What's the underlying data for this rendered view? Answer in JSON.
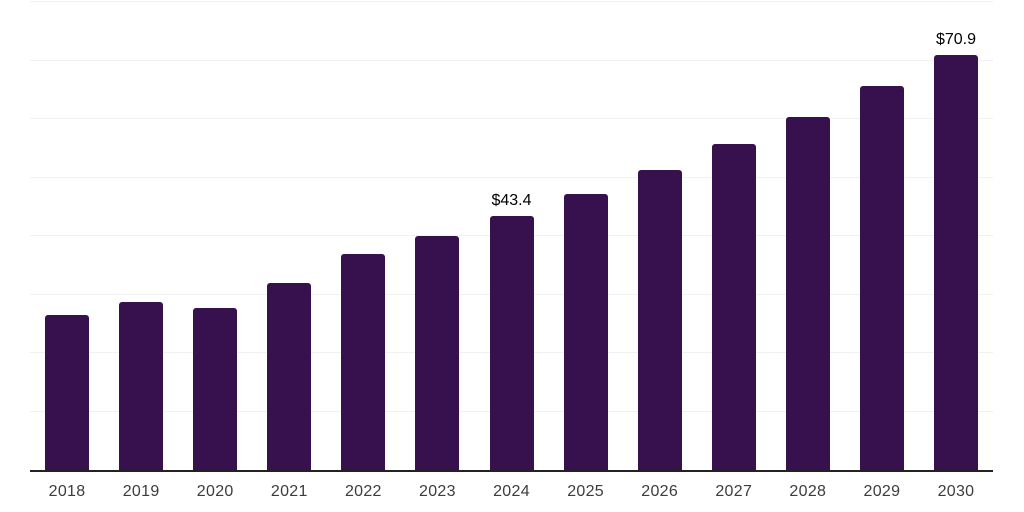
{
  "chart_data": {
    "type": "bar",
    "categories": [
      "2018",
      "2019",
      "2020",
      "2021",
      "2022",
      "2023",
      "2024",
      "2025",
      "2026",
      "2027",
      "2028",
      "2029",
      "2030"
    ],
    "values": [
      26.5,
      28.8,
      27.7,
      32.0,
      36.9,
      40.0,
      43.4,
      47.2,
      51.3,
      55.8,
      60.4,
      65.6,
      70.9
    ],
    "data_labels": [
      "",
      "",
      "",
      "",
      "",
      "",
      "$43.4",
      "",
      "",
      "",
      "",
      "",
      "$70.9"
    ],
    "title": "",
    "xlabel": "",
    "ylabel": "",
    "ylim": [
      0,
      80
    ],
    "gridline_step": 10,
    "grid": "horizontal-only",
    "legend": "none",
    "y_axis_ticks_visible": false,
    "colors": {
      "bar": "#36114D",
      "gridline": "#f1f1f1",
      "axis_line": "#222222",
      "tick_label": "#3c3c3c",
      "data_label": "#000000",
      "background": "#ffffff"
    }
  }
}
